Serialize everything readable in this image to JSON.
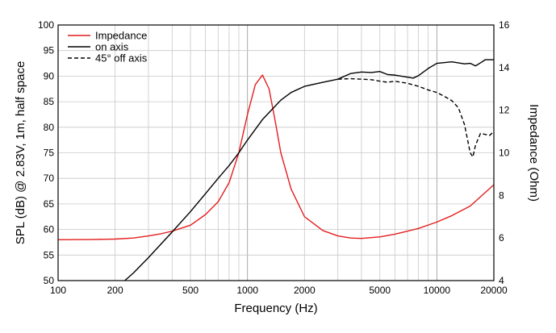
{
  "chart_data": {
    "type": "line",
    "title": "",
    "xlabel": "Frequency (Hz)",
    "ylabel": "SPL (dB) @ 2.83V, 1m, half space",
    "y2label": "Impedance (Ohm)",
    "x_scale": "log",
    "xlim": [
      100,
      20000
    ],
    "ylim": [
      50,
      100
    ],
    "y2lim": [
      4,
      16
    ],
    "grid": true,
    "legend_position": "top-left",
    "x_ticks": [
      100,
      200,
      500,
      1000,
      2000,
      5000,
      10000,
      20000
    ],
    "x_tick_labels": [
      "100",
      "200",
      "500",
      "1000",
      "2000",
      "5000",
      "10000",
      "20000"
    ],
    "y_ticks": [
      50,
      55,
      60,
      65,
      70,
      75,
      80,
      85,
      90,
      95,
      100
    ],
    "y_tick_labels": [
      "50",
      "55",
      "60",
      "65",
      "70",
      "75",
      "80",
      "85",
      "90",
      "95",
      "100"
    ],
    "y2_ticks": [
      4,
      6,
      8,
      10,
      12,
      14,
      16
    ],
    "y2_tick_labels": [
      "4",
      "6",
      "8",
      "10",
      "12",
      "14",
      "16"
    ],
    "series": [
      {
        "name": "Impedance",
        "axis": "right",
        "color": "#e41e1e",
        "dash": "solid",
        "points": [
          [
            100,
            5.92
          ],
          [
            150,
            5.93
          ],
          [
            200,
            5.95
          ],
          [
            250,
            6.0
          ],
          [
            300,
            6.1
          ],
          [
            350,
            6.2
          ],
          [
            400,
            6.32
          ],
          [
            500,
            6.6
          ],
          [
            600,
            7.1
          ],
          [
            700,
            7.7
          ],
          [
            800,
            8.6
          ],
          [
            900,
            10.0
          ],
          [
            1000,
            11.8
          ],
          [
            1100,
            13.2
          ],
          [
            1200,
            13.65
          ],
          [
            1300,
            13.0
          ],
          [
            1400,
            11.5
          ],
          [
            1500,
            10.0
          ],
          [
            1700,
            8.3
          ],
          [
            2000,
            7.0
          ],
          [
            2500,
            6.35
          ],
          [
            3000,
            6.1
          ],
          [
            3500,
            6.0
          ],
          [
            4000,
            5.98
          ],
          [
            5000,
            6.05
          ],
          [
            6000,
            6.18
          ],
          [
            7000,
            6.32
          ],
          [
            8000,
            6.45
          ],
          [
            10000,
            6.75
          ],
          [
            12000,
            7.05
          ],
          [
            15000,
            7.5
          ],
          [
            20000,
            8.5
          ]
        ]
      },
      {
        "name": "on axis",
        "axis": "left",
        "color": "#000000",
        "dash": "solid",
        "points": [
          [
            225,
            50.0
          ],
          [
            250,
            51.5
          ],
          [
            300,
            54.5
          ],
          [
            400,
            59.5
          ],
          [
            500,
            63.5
          ],
          [
            600,
            67.0
          ],
          [
            700,
            70.0
          ],
          [
            800,
            72.5
          ],
          [
            900,
            75.0
          ],
          [
            1000,
            77.5
          ],
          [
            1200,
            81.5
          ],
          [
            1500,
            85.3
          ],
          [
            1700,
            86.8
          ],
          [
            2000,
            88.0
          ],
          [
            2500,
            88.8
          ],
          [
            3000,
            89.4
          ],
          [
            3500,
            90.5
          ],
          [
            4000,
            90.8
          ],
          [
            4500,
            90.7
          ],
          [
            5000,
            90.9
          ],
          [
            5500,
            90.3
          ],
          [
            6000,
            90.2
          ],
          [
            7000,
            89.8
          ],
          [
            7500,
            89.6
          ],
          [
            8000,
            90.1
          ],
          [
            9000,
            91.5
          ],
          [
            10000,
            92.5
          ],
          [
            12000,
            92.8
          ],
          [
            14000,
            92.4
          ],
          [
            15000,
            92.5
          ],
          [
            16000,
            92.0
          ],
          [
            17000,
            92.6
          ],
          [
            18000,
            93.2
          ],
          [
            20000,
            93.2
          ]
        ]
      },
      {
        "name": "45° off axis",
        "axis": "left",
        "color": "#000000",
        "dash": "dashed",
        "points": [
          [
            3000,
            89.4
          ],
          [
            3500,
            89.5
          ],
          [
            4000,
            89.4
          ],
          [
            4500,
            89.3
          ],
          [
            5000,
            89.0
          ],
          [
            5500,
            88.8
          ],
          [
            6000,
            89.0
          ],
          [
            7000,
            88.6
          ],
          [
            8000,
            88.0
          ],
          [
            9000,
            87.3
          ],
          [
            10000,
            86.8
          ],
          [
            11000,
            86.0
          ],
          [
            12000,
            85.2
          ],
          [
            13000,
            83.8
          ],
          [
            14000,
            80.5
          ],
          [
            15000,
            75.0
          ],
          [
            15500,
            74.2
          ],
          [
            16000,
            76.5
          ],
          [
            17000,
            78.8
          ],
          [
            18000,
            78.6
          ],
          [
            19000,
            78.4
          ],
          [
            20000,
            79.2
          ]
        ]
      }
    ]
  }
}
